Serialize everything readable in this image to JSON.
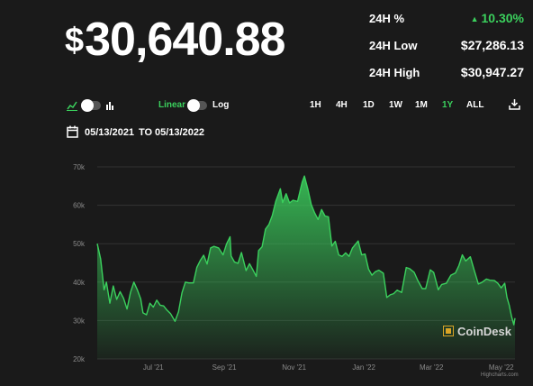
{
  "price": {
    "currency_symbol": "$",
    "value": "30,640.88"
  },
  "stats": [
    {
      "label": "24H %",
      "value": "10.30%",
      "direction": "up"
    },
    {
      "label": "24H Low",
      "value": "$27,286.13",
      "direction": "neutral"
    },
    {
      "label": "24H High",
      "value": "$30,947.27",
      "direction": "neutral"
    }
  ],
  "controls": {
    "chart_type_icons": [
      "line-chart-icon",
      "bar-chart-icon"
    ],
    "scale_linear": "Linear",
    "scale_log": "Log",
    "scale_selected": "Linear",
    "ranges": [
      "1H",
      "4H",
      "1D",
      "1W",
      "1M",
      "1Y",
      "ALL"
    ],
    "range_selected": "1Y",
    "download_icon": "download-icon"
  },
  "date_range": {
    "from": "05/13/2021",
    "to_label": "TO",
    "to": "05/13/2022",
    "icon": "calendar-icon"
  },
  "colors": {
    "accent": "#3bd05d",
    "background": "#1a1a1a",
    "watermark_logo": "#d9a426"
  },
  "watermark": "CoinDesk",
  "credit": "Highcharts.com",
  "chart_data": {
    "type": "area",
    "y_ticks": [
      "70k",
      "60k",
      "50k",
      "40k",
      "30k",
      "20k"
    ],
    "y_tick_values": [
      70000,
      60000,
      50000,
      40000,
      30000,
      20000
    ],
    "ylim": [
      20000,
      70000
    ],
    "x_ticks": [
      {
        "label": "Jul '21",
        "date": "2021-07-01"
      },
      {
        "label": "Sep '21",
        "date": "2021-09-01"
      },
      {
        "label": "Nov '21",
        "date": "2021-11-01"
      },
      {
        "label": "Jan '22",
        "date": "2022-01-01"
      },
      {
        "label": "Mar '22",
        "date": "2022-03-01"
      },
      {
        "label": "May '22",
        "date": "2022-05-01"
      }
    ],
    "xlim": [
      "2021-05-13",
      "2022-05-13"
    ],
    "grid": true,
    "series": [
      {
        "points": [
          [
            "2021-05-13",
            50000
          ],
          [
            "2021-05-16",
            46000
          ],
          [
            "2021-05-19",
            38000
          ],
          [
            "2021-05-21",
            40000
          ],
          [
            "2021-05-24",
            34500
          ],
          [
            "2021-05-27",
            39000
          ],
          [
            "2021-05-30",
            35500
          ],
          [
            "2021-06-02",
            37500
          ],
          [
            "2021-06-05",
            35800
          ],
          [
            "2021-06-08",
            33000
          ],
          [
            "2021-06-11",
            37300
          ],
          [
            "2021-06-14",
            40000
          ],
          [
            "2021-06-17",
            38000
          ],
          [
            "2021-06-20",
            35600
          ],
          [
            "2021-06-22",
            32000
          ],
          [
            "2021-06-25",
            31500
          ],
          [
            "2021-06-28",
            34500
          ],
          [
            "2021-07-01",
            33500
          ],
          [
            "2021-07-04",
            35300
          ],
          [
            "2021-07-07",
            34000
          ],
          [
            "2021-07-10",
            33800
          ],
          [
            "2021-07-13",
            32700
          ],
          [
            "2021-07-16",
            31800
          ],
          [
            "2021-07-20",
            29800
          ],
          [
            "2021-07-23",
            32300
          ],
          [
            "2021-07-26",
            37200
          ],
          [
            "2021-07-29",
            40000
          ],
          [
            "2021-08-01",
            39800
          ],
          [
            "2021-08-05",
            39800
          ],
          [
            "2021-08-08",
            43800
          ],
          [
            "2021-08-11",
            45600
          ],
          [
            "2021-08-14",
            47000
          ],
          [
            "2021-08-17",
            44700
          ],
          [
            "2021-08-20",
            48900
          ],
          [
            "2021-08-23",
            49300
          ],
          [
            "2021-08-27",
            48900
          ],
          [
            "2021-08-31",
            47100
          ],
          [
            "2021-09-03",
            49900
          ],
          [
            "2021-09-06",
            51800
          ],
          [
            "2021-09-07",
            46800
          ],
          [
            "2021-09-10",
            45200
          ],
          [
            "2021-09-13",
            44900
          ],
          [
            "2021-09-16",
            47700
          ],
          [
            "2021-09-20",
            43000
          ],
          [
            "2021-09-23",
            44800
          ],
          [
            "2021-09-26",
            43200
          ],
          [
            "2021-09-29",
            41500
          ],
          [
            "2021-10-01",
            48200
          ],
          [
            "2021-10-04",
            49200
          ],
          [
            "2021-10-07",
            53800
          ],
          [
            "2021-10-10",
            55000
          ],
          [
            "2021-10-13",
            57400
          ],
          [
            "2021-10-16",
            61000
          ],
          [
            "2021-10-20",
            64300
          ],
          [
            "2021-10-22",
            60700
          ],
          [
            "2021-10-25",
            63000
          ],
          [
            "2021-10-28",
            60600
          ],
          [
            "2021-10-31",
            61300
          ],
          [
            "2021-11-04",
            61000
          ],
          [
            "2021-11-08",
            66000
          ],
          [
            "2021-11-10",
            67600
          ],
          [
            "2021-11-13",
            64200
          ],
          [
            "2021-11-16",
            60200
          ],
          [
            "2021-11-19",
            58000
          ],
          [
            "2021-11-22",
            56300
          ],
          [
            "2021-11-25",
            58900
          ],
          [
            "2021-11-28",
            57200
          ],
          [
            "2021-12-01",
            57000
          ],
          [
            "2021-12-04",
            49400
          ],
          [
            "2021-12-07",
            50600
          ],
          [
            "2021-12-10",
            47100
          ],
          [
            "2021-12-13",
            46700
          ],
          [
            "2021-12-16",
            47600
          ],
          [
            "2021-12-19",
            46700
          ],
          [
            "2021-12-22",
            48900
          ],
          [
            "2021-12-27",
            50700
          ],
          [
            "2021-12-30",
            47100
          ],
          [
            "2022-01-02",
            47300
          ],
          [
            "2022-01-05",
            43400
          ],
          [
            "2022-01-08",
            41800
          ],
          [
            "2022-01-11",
            42700
          ],
          [
            "2022-01-14",
            43100
          ],
          [
            "2022-01-18",
            42300
          ],
          [
            "2022-01-21",
            36000
          ],
          [
            "2022-01-24",
            36700
          ],
          [
            "2022-01-27",
            37000
          ],
          [
            "2022-01-30",
            37900
          ],
          [
            "2022-02-03",
            37300
          ],
          [
            "2022-02-07",
            43800
          ],
          [
            "2022-02-10",
            43500
          ],
          [
            "2022-02-14",
            42500
          ],
          [
            "2022-02-17",
            40500
          ],
          [
            "2022-02-21",
            38300
          ],
          [
            "2022-02-24",
            38300
          ],
          [
            "2022-02-28",
            43200
          ],
          [
            "2022-03-03",
            42500
          ],
          [
            "2022-03-07",
            38000
          ],
          [
            "2022-03-10",
            39400
          ],
          [
            "2022-03-14",
            39700
          ],
          [
            "2022-03-18",
            41800
          ],
          [
            "2022-03-22",
            42400
          ],
          [
            "2022-03-25",
            44300
          ],
          [
            "2022-03-28",
            47100
          ],
          [
            "2022-03-31",
            45500
          ],
          [
            "2022-04-04",
            46600
          ],
          [
            "2022-04-07",
            43500
          ],
          [
            "2022-04-11",
            39500
          ],
          [
            "2022-04-14",
            39900
          ],
          [
            "2022-04-18",
            40800
          ],
          [
            "2022-04-21",
            40500
          ],
          [
            "2022-04-25",
            40400
          ],
          [
            "2022-04-28",
            39700
          ],
          [
            "2022-05-01",
            38500
          ],
          [
            "2022-05-04",
            39700
          ],
          [
            "2022-05-06",
            36000
          ],
          [
            "2022-05-08",
            34000
          ],
          [
            "2022-05-10",
            31000
          ],
          [
            "2022-05-12",
            28900
          ],
          [
            "2022-05-13",
            30600
          ]
        ]
      }
    ]
  }
}
